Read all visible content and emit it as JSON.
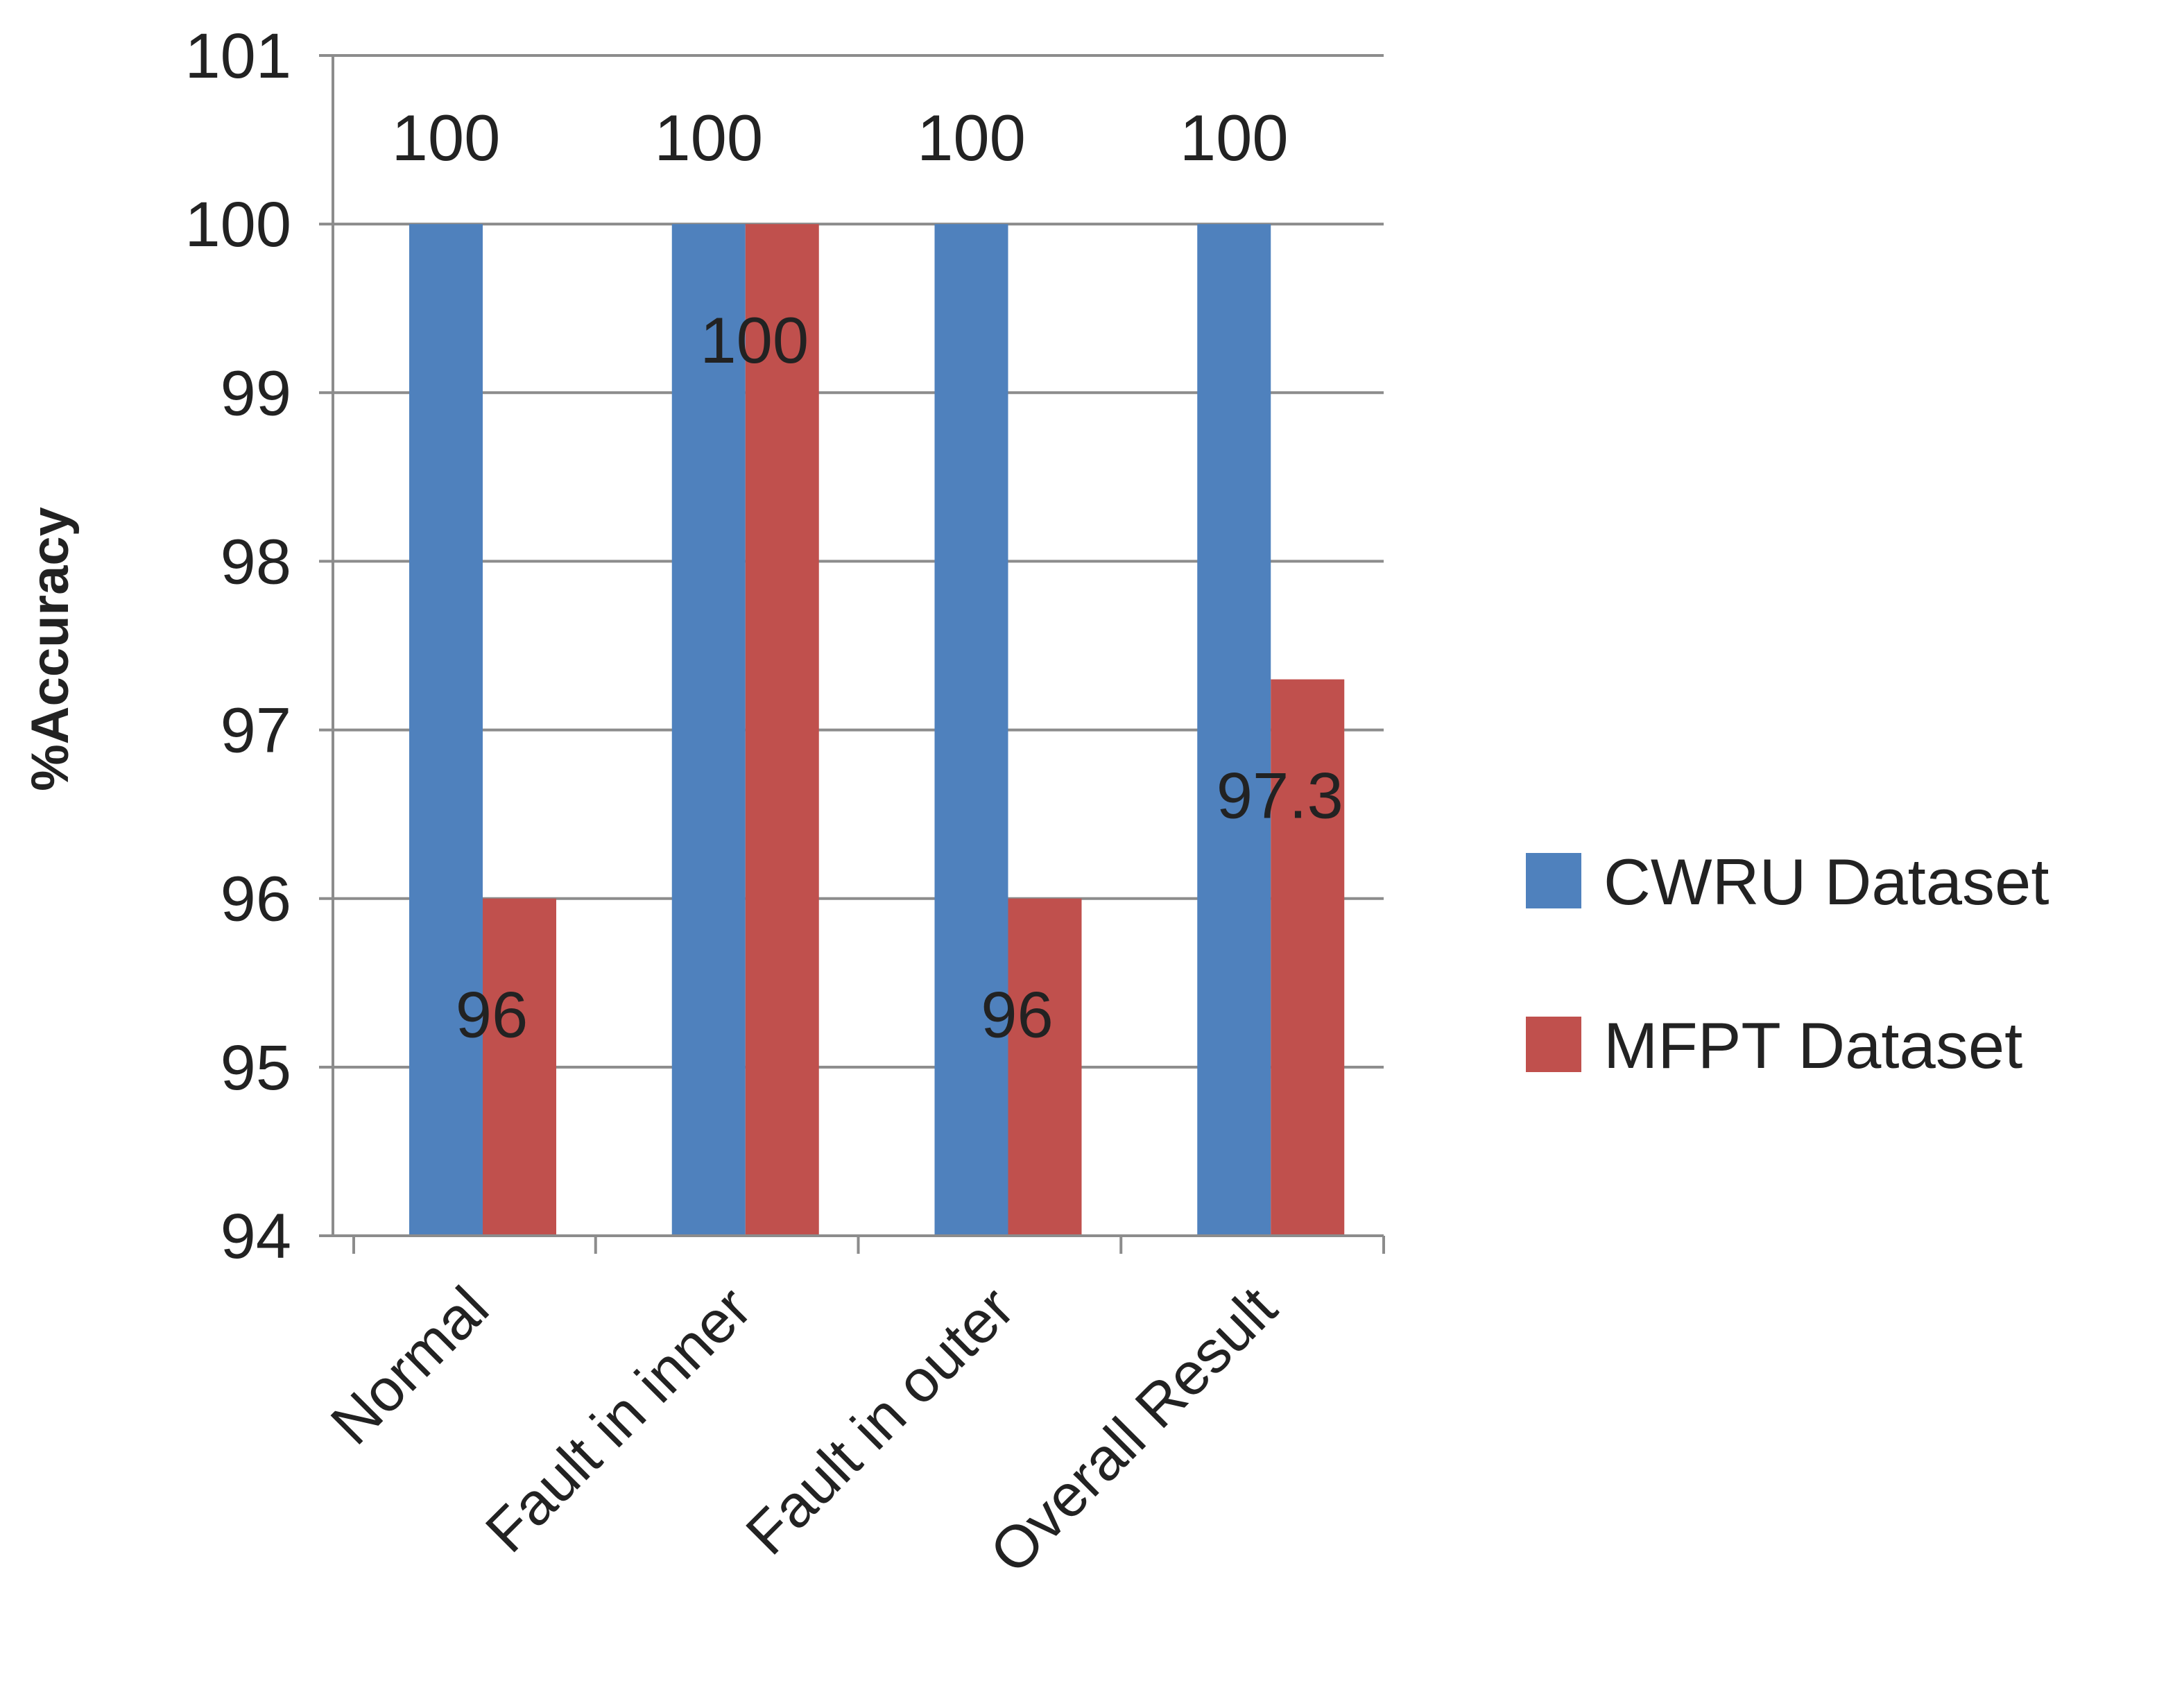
{
  "chart_data": {
    "type": "bar",
    "title": "",
    "xlabel": "",
    "ylabel": "%Accuracy",
    "ylim": [
      94,
      101
    ],
    "yticks": [
      94,
      95,
      96,
      97,
      98,
      99,
      100,
      101
    ],
    "grid": true,
    "legend_position": "right",
    "categories": [
      "Normal",
      "Fault in inner",
      "Fault in outer",
      "Overall Result"
    ],
    "series": [
      {
        "name": "CWRU Dataset",
        "color": "#4f81bd",
        "values": [
          100,
          100,
          100,
          100
        ],
        "labels": [
          "100",
          "100",
          "100",
          "100"
        ]
      },
      {
        "name": "MFPT Dataset",
        "color": "#c0504d",
        "values": [
          96,
          100,
          96,
          97.3
        ],
        "labels": [
          "96",
          "100",
          "96",
          "97.3"
        ]
      }
    ]
  }
}
